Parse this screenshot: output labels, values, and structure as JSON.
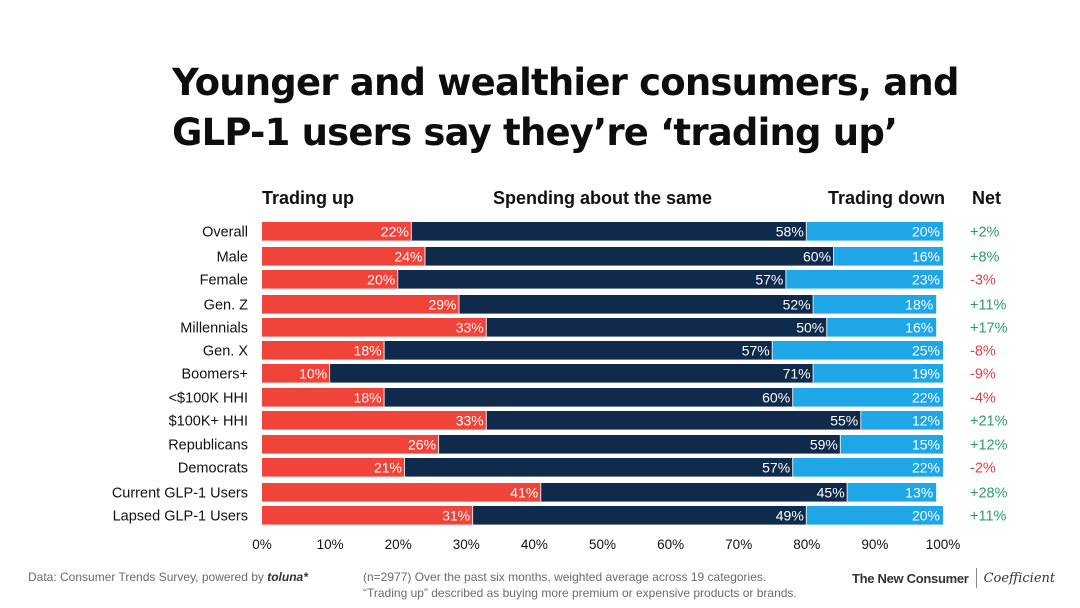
{
  "title": {
    "line1": "Younger and wealthier consumers, and",
    "line2": "GLP-1 users say they’re ‘trading up’"
  },
  "chart_data": {
    "type": "bar",
    "orientation": "horizontal",
    "stacked": true,
    "headers": {
      "trading_up": "Trading up",
      "same": "Spending about the same",
      "trading_down": "Trading down",
      "net": "Net"
    },
    "categories": [
      "Overall",
      "Male",
      "Female",
      "Gen. Z",
      "Millennials",
      "Gen. X",
      "Boomers+",
      "<$100K HHI",
      "$100K+ HHI",
      "Republicans",
      "Democrats",
      "Current GLP-1 Users",
      "Lapsed GLP-1 Users"
    ],
    "series": [
      {
        "name": "Trading up",
        "color": "#f0433a",
        "values": [
          22,
          24,
          20,
          29,
          33,
          18,
          10,
          18,
          33,
          26,
          21,
          41,
          31
        ]
      },
      {
        "name": "Spending about the same",
        "color": "#0f2a4a",
        "values": [
          58,
          60,
          57,
          52,
          50,
          57,
          71,
          60,
          55,
          59,
          57,
          45,
          49
        ]
      },
      {
        "name": "Trading down",
        "color": "#1ea6e6",
        "values": [
          20,
          16,
          23,
          18,
          16,
          25,
          19,
          22,
          12,
          15,
          22,
          13,
          20
        ]
      }
    ],
    "net": [
      "+2%",
      "+8%",
      "-3%",
      "+11%",
      "+17%",
      "-8%",
      "-9%",
      "-4%",
      "+21%",
      "+12%",
      "-2%",
      "+28%",
      "+11%"
    ],
    "net_colors": {
      "positive": "#2a9d6c",
      "negative": "#d6424a"
    },
    "x_ticks": [
      "0%",
      "10%",
      "20%",
      "30%",
      "40%",
      "50%",
      "60%",
      "70%",
      "80%",
      "90%",
      "100%"
    ],
    "xlim": [
      0,
      100
    ],
    "value_suffix": "%"
  },
  "footer": {
    "source": "Data: Consumer Trends Survey, powered by",
    "toluna": "toluna*",
    "note_line1": "(n=2977) Over the past six months, weighted average across 19 categories.",
    "note_line2": "“Trading up” described as buying more premium or expensive products or brands.",
    "brand_left": "The New Consumer",
    "brand_right": "Coefficient"
  }
}
